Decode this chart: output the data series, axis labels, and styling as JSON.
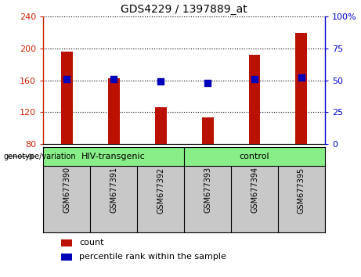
{
  "title": "GDS4229 / 1397889_at",
  "samples": [
    "GSM677390",
    "GSM677391",
    "GSM677392",
    "GSM677393",
    "GSM677394",
    "GSM677395"
  ],
  "counts": [
    196,
    163,
    126,
    113,
    192,
    220
  ],
  "percentile_ranks": [
    51,
    51,
    49,
    48,
    51,
    52
  ],
  "ylim_left": [
    80,
    240
  ],
  "ylim_right": [
    0,
    100
  ],
  "yticks_left": [
    80,
    120,
    160,
    200,
    240
  ],
  "yticks_right": [
    0,
    25,
    50,
    75,
    100
  ],
  "left_tick_labels": [
    "80",
    "120",
    "160",
    "200",
    "240"
  ],
  "right_tick_labels": [
    "0",
    "25",
    "50",
    "75",
    "100%"
  ],
  "bar_color": "#bb1100",
  "dot_color": "#0000bb",
  "background_plot": "#ffffff",
  "xticklabel_bg": "#c8c8c8",
  "group_color": "#88ee88",
  "group_labels": [
    "HIV-transgenic",
    "control"
  ],
  "genotype_label": "genotype/variation",
  "legend_count": "count",
  "legend_percentile": "percentile rank within the sample",
  "bar_width": 0.25,
  "dot_size": 40,
  "left_color": "#cc2200",
  "right_color": "#0000cc",
  "title_fontsize": 10,
  "tick_fontsize": 8,
  "label_fontsize": 8
}
